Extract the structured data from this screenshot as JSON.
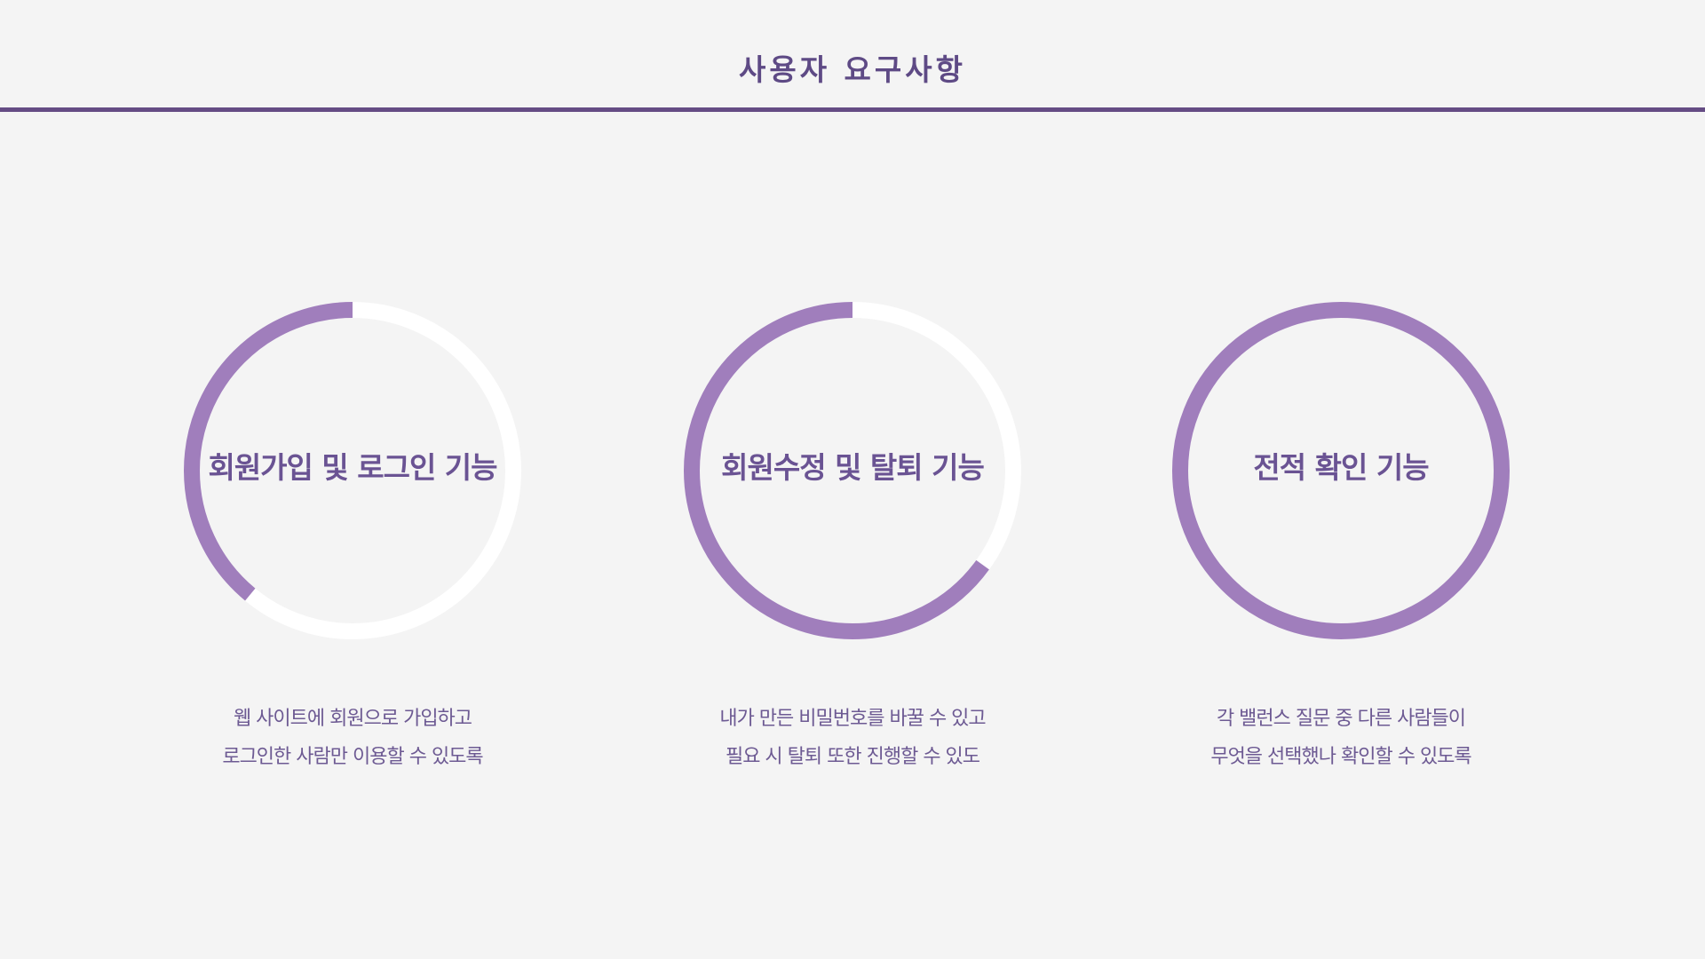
{
  "slide": {
    "title": "사용자 요구사항"
  },
  "colors": {
    "accent": "#a07ebc",
    "track": "#ffffff",
    "title": "#5e4a85",
    "divider": "#654c84"
  },
  "cards": [
    {
      "label": "회원가입 및 로그인 기능",
      "progress_fraction": 0.39,
      "desc_line1": "웹 사이트에 회원으로 가입하고",
      "desc_line2": "로그인한 사람만 이용할 수 있도록"
    },
    {
      "label": "회원수정 및 탈퇴 기능",
      "progress_fraction": 0.65,
      "desc_line1": "내가 만든 비밀번호를 바꿀 수 있고",
      "desc_line2": "필요 시 탈퇴 또한 진행할 수 있도"
    },
    {
      "label": "전적 확인 기능",
      "progress_fraction": 1.0,
      "desc_line1": "각 밸런스 질문 중 다른 사람들이",
      "desc_line2": "무엇을 선택했나 확인할 수 있도록"
    }
  ]
}
